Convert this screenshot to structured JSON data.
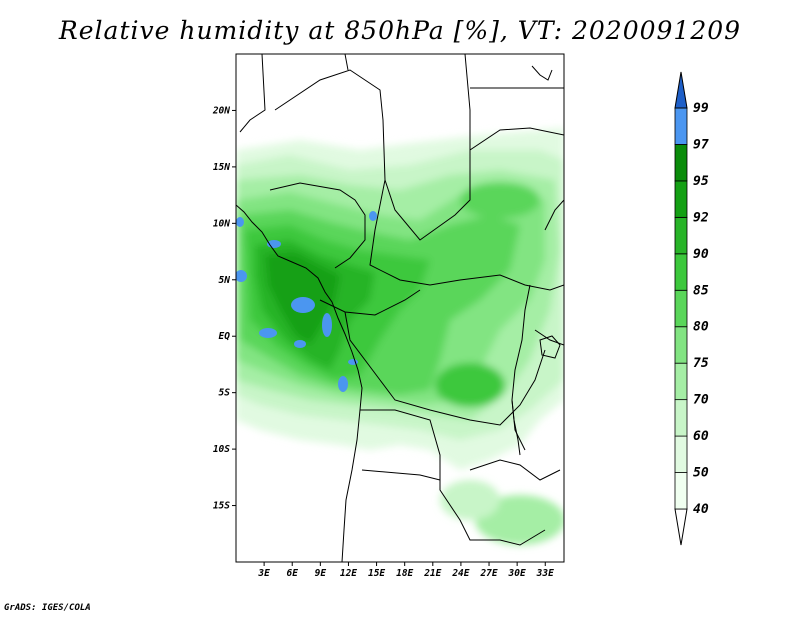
{
  "title": "Relative humidity at 850hPa [%], VT: 2020091209",
  "credit": "GrADS: IGES/COLA",
  "map": {
    "lon_range": [
      0,
      35
    ],
    "lat_range": [
      -20,
      25
    ],
    "lon_ticks": [
      {
        "value": 3,
        "label": "3E"
      },
      {
        "value": 6,
        "label": "6E"
      },
      {
        "value": 9,
        "label": "9E"
      },
      {
        "value": 12,
        "label": "12E"
      },
      {
        "value": 15,
        "label": "15E"
      },
      {
        "value": 18,
        "label": "18E"
      },
      {
        "value": 21,
        "label": "21E"
      },
      {
        "value": 24,
        "label": "24E"
      },
      {
        "value": 27,
        "label": "27E"
      },
      {
        "value": 30,
        "label": "30E"
      },
      {
        "value": 33,
        "label": "33E"
      }
    ],
    "lat_ticks": [
      {
        "value": 20,
        "label": "20N"
      },
      {
        "value": 15,
        "label": "15N"
      },
      {
        "value": 10,
        "label": "10N"
      },
      {
        "value": 5,
        "label": "5N"
      },
      {
        "value": 0,
        "label": "EQ"
      },
      {
        "value": -5,
        "label": "5S"
      },
      {
        "value": -10,
        "label": "10S"
      },
      {
        "value": -15,
        "label": "15S"
      }
    ]
  },
  "colorbar": {
    "levels": [
      {
        "label": "40",
        "color": "#f0fff0"
      },
      {
        "label": "50",
        "color": "#e1fae1"
      },
      {
        "label": "60",
        "color": "#c8f5c8"
      },
      {
        "label": "70",
        "color": "#a5eea5"
      },
      {
        "label": "75",
        "color": "#82e482"
      },
      {
        "label": "80",
        "color": "#5ad65a"
      },
      {
        "label": "85",
        "color": "#3cc83c"
      },
      {
        "label": "90",
        "color": "#28b428"
      },
      {
        "label": "92",
        "color": "#14a014"
      },
      {
        "label": "95",
        "color": "#0a8c0a"
      },
      {
        "label": "97",
        "color": "#4b96f0"
      },
      {
        "label": "99",
        "color": "#2d78e6"
      }
    ],
    "below_color": "#ffffff",
    "above_color": "#1e5fc8"
  }
}
